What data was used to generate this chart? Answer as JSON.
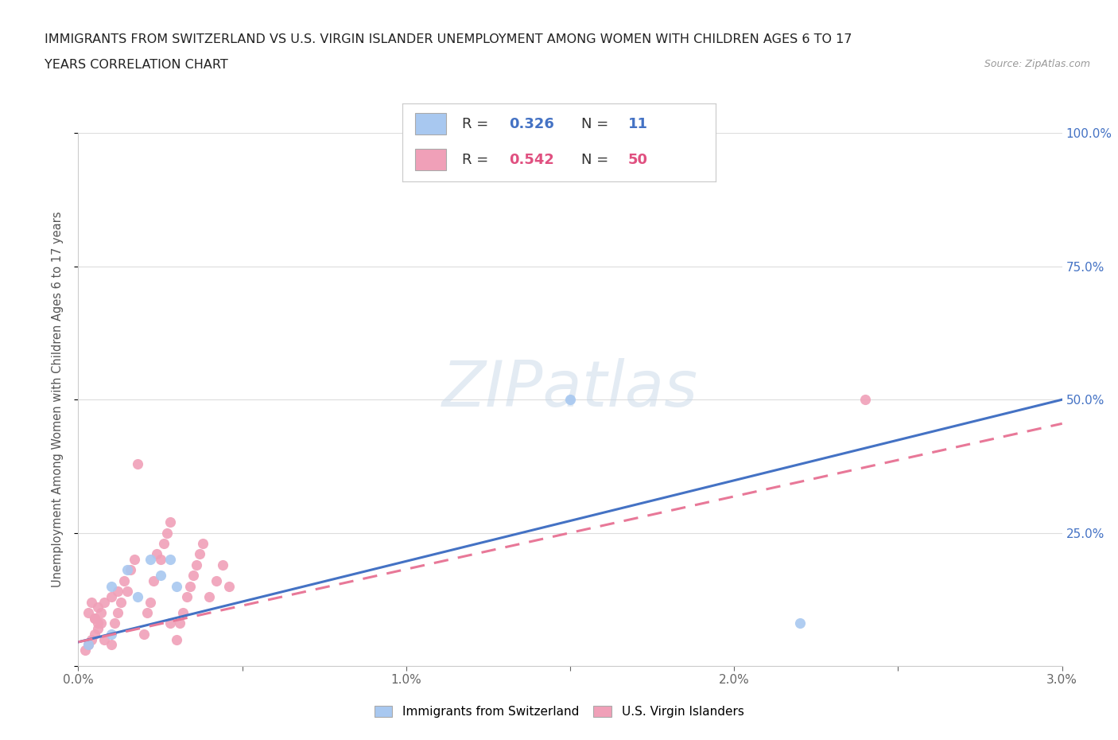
{
  "title_line1": "IMMIGRANTS FROM SWITZERLAND VS U.S. VIRGIN ISLANDER UNEMPLOYMENT AMONG WOMEN WITH CHILDREN AGES 6 TO 17",
  "title_line2": "YEARS CORRELATION CHART",
  "source": "Source: ZipAtlas.com",
  "ylabel": "Unemployment Among Women with Children Ages 6 to 17 years",
  "xlim": [
    0.0,
    0.03
  ],
  "ylim": [
    0.0,
    1.0
  ],
  "xticks": [
    0.0,
    0.005,
    0.01,
    0.015,
    0.02,
    0.025,
    0.03
  ],
  "xtick_labels": [
    "0.0%",
    "",
    "1.0%",
    "",
    "2.0%",
    "",
    "3.0%"
  ],
  "yticks": [
    0.0,
    0.25,
    0.5,
    0.75,
    1.0
  ],
  "ytick_labels": [
    "",
    "25.0%",
    "50.0%",
    "75.0%",
    "100.0%"
  ],
  "r_swiss": 0.326,
  "n_swiss": 11,
  "r_vi": 0.542,
  "n_vi": 50,
  "swiss_color": "#a8c8f0",
  "vi_color": "#f0a0b8",
  "swiss_line_color": "#4472c4",
  "vi_line_color": "#e87898",
  "watermark": "ZIPatlas",
  "swiss_x": [
    0.0003,
    0.001,
    0.001,
    0.0015,
    0.0018,
    0.0022,
    0.0025,
    0.0028,
    0.003,
    0.015,
    0.022
  ],
  "swiss_y": [
    0.04,
    0.06,
    0.15,
    0.18,
    0.13,
    0.2,
    0.17,
    0.2,
    0.15,
    0.5,
    0.08
  ],
  "vi_x": [
    0.0002,
    0.0003,
    0.0004,
    0.0005,
    0.0005,
    0.0006,
    0.0006,
    0.0007,
    0.0008,
    0.0008,
    0.001,
    0.001,
    0.0011,
    0.0012,
    0.0012,
    0.0013,
    0.0014,
    0.0015,
    0.0016,
    0.0017,
    0.0018,
    0.002,
    0.0021,
    0.0022,
    0.0023,
    0.0024,
    0.0025,
    0.0026,
    0.0027,
    0.0028,
    0.003,
    0.0031,
    0.0032,
    0.0033,
    0.0034,
    0.0035,
    0.0036,
    0.0037,
    0.0038,
    0.004,
    0.0042,
    0.0044,
    0.0046,
    0.0005,
    0.0004,
    0.0003,
    0.0006,
    0.0007,
    0.024,
    0.0028
  ],
  "vi_y": [
    0.03,
    0.04,
    0.05,
    0.06,
    0.09,
    0.07,
    0.11,
    0.08,
    0.05,
    0.12,
    0.04,
    0.13,
    0.08,
    0.1,
    0.14,
    0.12,
    0.16,
    0.14,
    0.18,
    0.2,
    0.38,
    0.06,
    0.1,
    0.12,
    0.16,
    0.21,
    0.2,
    0.23,
    0.25,
    0.27,
    0.05,
    0.08,
    0.1,
    0.13,
    0.15,
    0.17,
    0.19,
    0.21,
    0.23,
    0.13,
    0.16,
    0.19,
    0.15,
    0.09,
    0.12,
    0.1,
    0.08,
    0.1,
    0.5,
    0.08
  ],
  "swiss_trend_x": [
    0.0,
    0.03
  ],
  "swiss_trend_y": [
    0.045,
    0.5
  ],
  "vi_trend_x": [
    0.0,
    0.03
  ],
  "vi_trend_y": [
    0.045,
    0.455
  ],
  "background_color": "#ffffff",
  "grid_color": "#dddddd"
}
